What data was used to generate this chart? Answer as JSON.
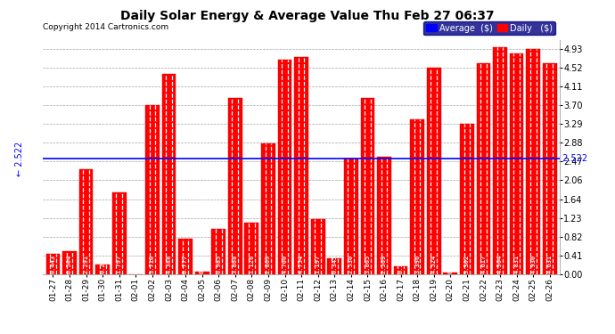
{
  "title": "Daily Solar Energy & Average Value Thu Feb 27 06:37",
  "copyright": "Copyright 2014 Cartronics.com",
  "categories": [
    "01-27",
    "01-28",
    "01-29",
    "01-30",
    "01-31",
    "02-01",
    "02-02",
    "02-03",
    "02-04",
    "02-05",
    "02-06",
    "02-07",
    "02-08",
    "02-09",
    "02-10",
    "02-11",
    "02-12",
    "02-13",
    "02-14",
    "02-15",
    "02-16",
    "02-17",
    "02-18",
    "02-19",
    "02-20",
    "02-21",
    "02-22",
    "02-23",
    "02-24",
    "02-25",
    "02-26"
  ],
  "values": [
    0.443,
    0.504,
    2.291,
    0.212,
    1.797,
    0.0,
    3.71,
    4.388,
    0.777,
    0.045,
    0.985,
    3.868,
    1.126,
    2.869,
    4.7,
    4.754,
    1.197,
    0.345,
    2.53,
    3.865,
    2.569,
    0.164,
    3.396,
    4.524,
    0.028,
    3.302,
    4.617,
    4.964,
    4.831,
    4.93,
    4.631
  ],
  "average": 2.522,
  "bar_color": "#FF0000",
  "bar_edge_color": "#CC0000",
  "average_line_color": "#0000FF",
  "background_color": "#FFFFFF",
  "grid_color": "#999999",
  "yticks": [
    0.0,
    0.41,
    0.82,
    1.23,
    1.64,
    2.06,
    2.47,
    2.88,
    3.29,
    3.7,
    4.11,
    4.52,
    4.93
  ],
  "ylim": [
    0,
    5.13
  ],
  "legend_bg_color": "#000080",
  "avg_label": "Average  ($)",
  "daily_label": "Daily   ($)"
}
